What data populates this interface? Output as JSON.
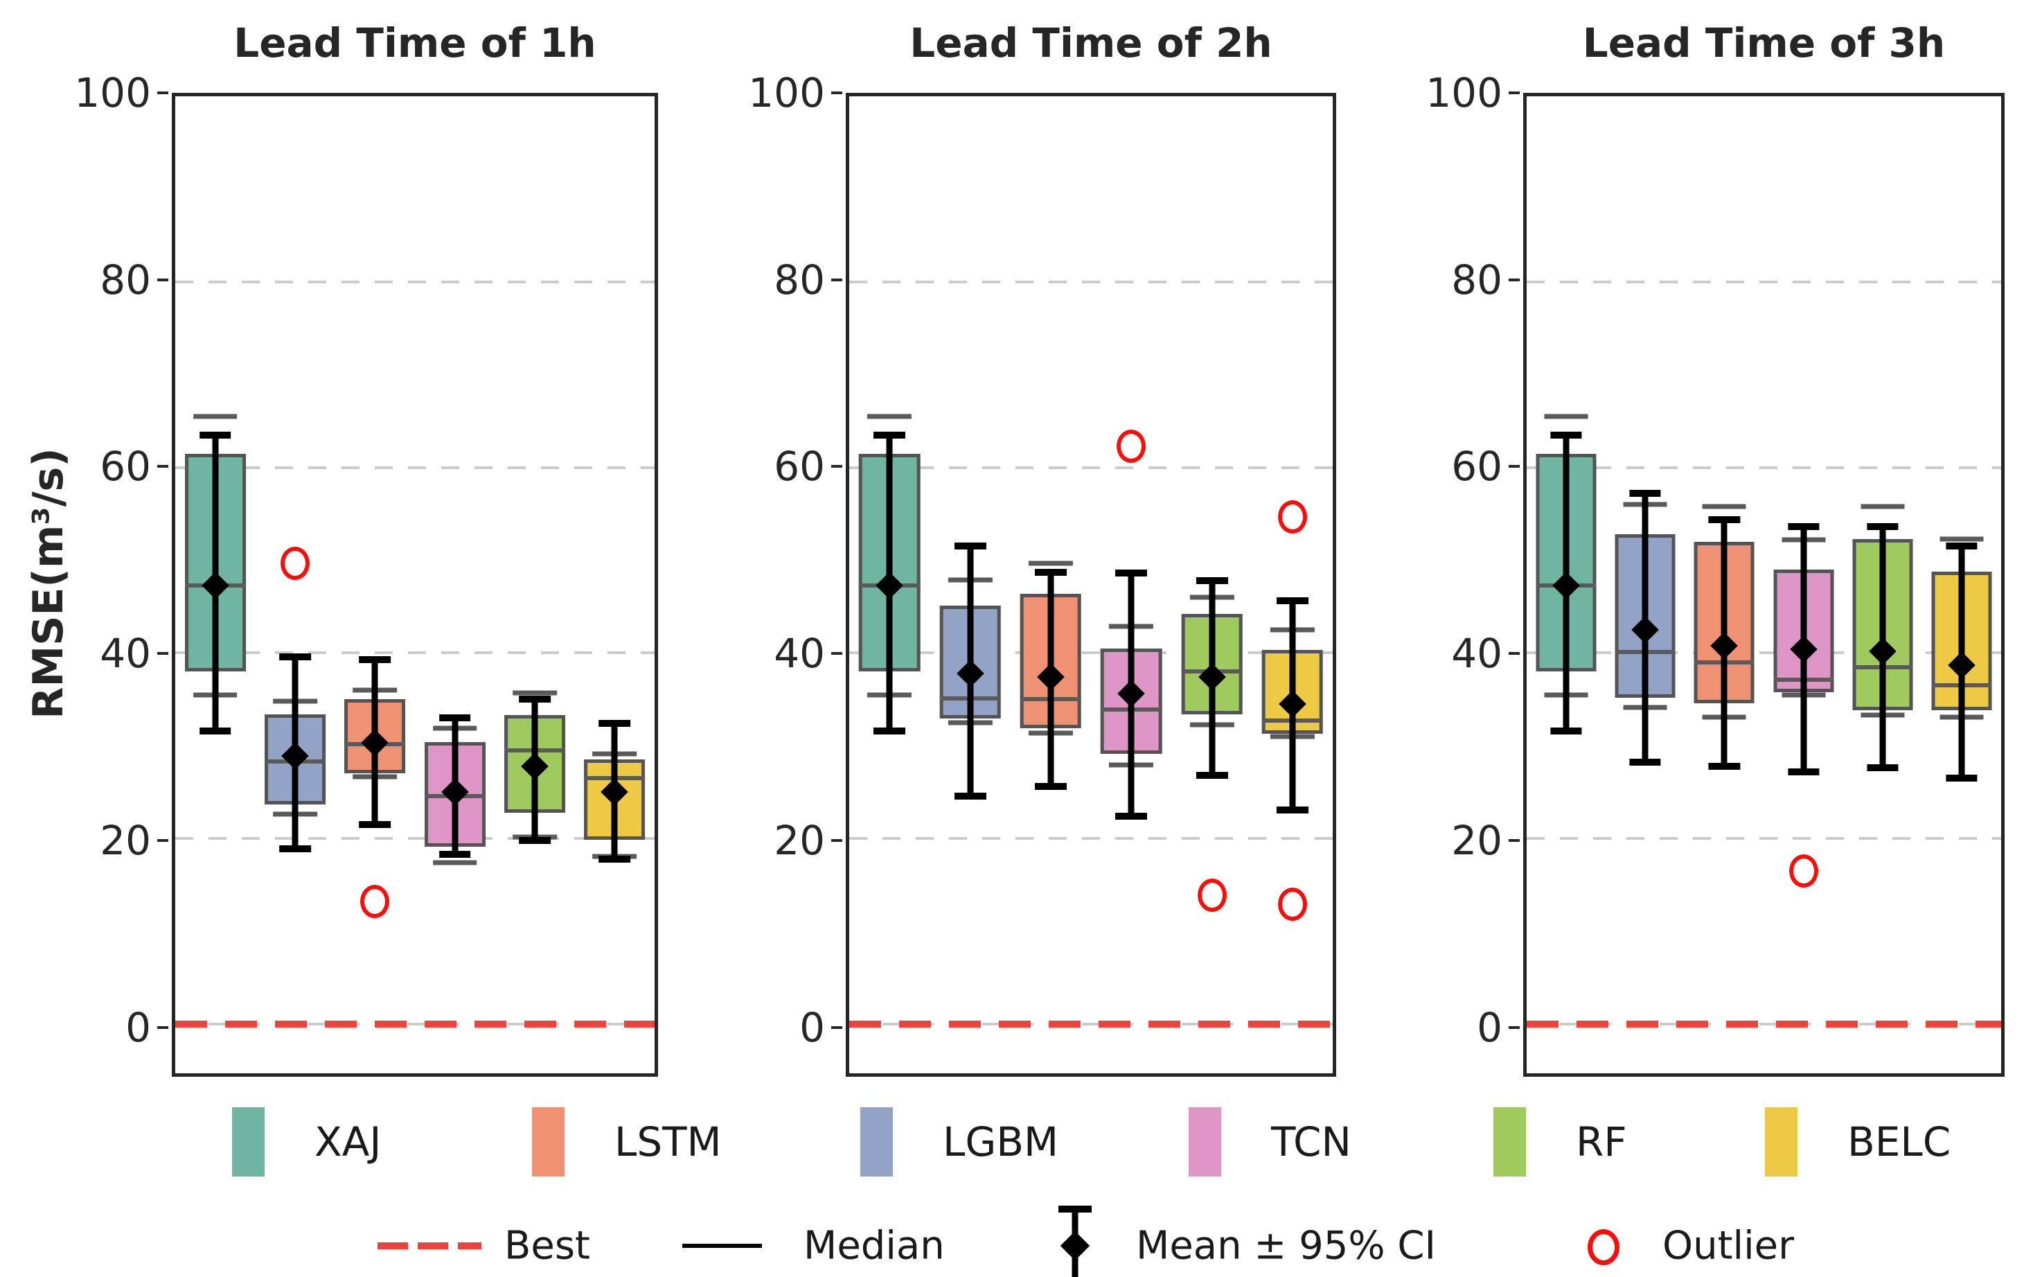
{
  "ylabel": "RMSE(m³/s)",
  "yticks": [
    0,
    20,
    40,
    60,
    80,
    100
  ],
  "gridline_values": [
    20,
    40,
    60,
    80
  ],
  "models": [
    {
      "label": "XAJ",
      "color": "#70b5a1"
    },
    {
      "label": "LGBM",
      "color": "#93a2c7"
    },
    {
      "label": "LSTM",
      "color": "#ef9273"
    },
    {
      "label": "TCN",
      "color": "#dd96c5"
    },
    {
      "label": "RF",
      "color": "#9eca5e"
    },
    {
      "label": "BELC",
      "color": "#edc944"
    }
  ],
  "legend_order": [
    "XAJ",
    "LSTM",
    "LGBM",
    "TCN",
    "RF",
    "BELC"
  ],
  "legend_markers": {
    "best": "Best",
    "median": "Median",
    "mean_ci": "Mean ± 95% CI",
    "outlier": "Outlier"
  },
  "status_colors": {
    "best_line_red": "#f0413c",
    "outlier_red": "#f80f0c",
    "box_edge_gray": "#545454",
    "gridline_gray": "#cbcbcb",
    "mean_ci_black": "#000000"
  },
  "chart_data": {
    "type": "box",
    "ylabel": "RMSE(m³/s)",
    "ylim": [
      -5.3,
      100
    ],
    "grid": "dashed horizontal at 20,40,60,80",
    "best_reference_line_y": 0,
    "legend_position": "below, two rows",
    "panels": [
      {
        "title": "Lead Time of 1h",
        "boxes": [
          {
            "model": "XAJ",
            "whisker_low": 35.5,
            "q1": 38.0,
            "median": 47.3,
            "q3": 61.5,
            "whisker_high": 65.5,
            "mean": 47.3,
            "ci_low": 31.6,
            "ci_high": 63.5,
            "outliers": []
          },
          {
            "model": "LGBM",
            "whisker_low": 22.6,
            "q1": 23.7,
            "median": 28.3,
            "q3": 33.4,
            "whisker_high": 34.8,
            "mean": 28.9,
            "ci_low": 18.9,
            "ci_high": 39.6,
            "outliers": [
              49.7
            ]
          },
          {
            "model": "LSTM",
            "whisker_low": 26.7,
            "q1": 27.0,
            "median": 30.2,
            "q3": 35.0,
            "whisker_high": 36.0,
            "mean": 30.3,
            "ci_low": 21.5,
            "ci_high": 39.3,
            "outliers": [
              13.2
            ]
          },
          {
            "model": "TCN",
            "whisker_low": 17.4,
            "q1": 19.1,
            "median": 24.6,
            "q3": 30.4,
            "whisker_high": 31.9,
            "mean": 25.0,
            "ci_low": 18.3,
            "ci_high": 33.0,
            "outliers": []
          },
          {
            "model": "RF",
            "whisker_low": 20.2,
            "q1": 22.8,
            "median": 29.5,
            "q3": 33.3,
            "whisker_high": 35.7,
            "mean": 27.8,
            "ci_low": 19.8,
            "ci_high": 35.0,
            "outliers": []
          },
          {
            "model": "BELC",
            "whisker_low": 18.1,
            "q1": 19.9,
            "median": 26.5,
            "q3": 28.5,
            "whisker_high": 29.1,
            "mean": 25.0,
            "ci_low": 17.8,
            "ci_high": 32.4,
            "outliers": []
          }
        ]
      },
      {
        "title": "Lead Time of 2h",
        "boxes": [
          {
            "model": "XAJ",
            "whisker_low": 35.5,
            "q1": 38.0,
            "median": 47.3,
            "q3": 61.5,
            "whisker_high": 65.5,
            "mean": 47.3,
            "ci_low": 31.6,
            "ci_high": 63.5,
            "outliers": []
          },
          {
            "model": "LGBM",
            "whisker_low": 32.5,
            "q1": 32.9,
            "median": 35.1,
            "q3": 45.1,
            "whisker_high": 47.9,
            "mean": 37.8,
            "ci_low": 24.6,
            "ci_high": 51.5,
            "outliers": []
          },
          {
            "model": "LSTM",
            "whisker_low": 31.4,
            "q1": 31.9,
            "median": 35.0,
            "q3": 46.4,
            "whisker_high": 49.7,
            "mean": 37.4,
            "ci_low": 25.6,
            "ci_high": 48.7,
            "outliers": []
          },
          {
            "model": "TCN",
            "whisker_low": 27.9,
            "q1": 29.1,
            "median": 33.9,
            "q3": 40.5,
            "whisker_high": 42.9,
            "mean": 35.6,
            "ci_low": 22.4,
            "ci_high": 48.6,
            "outliers": [
              62.3
            ]
          },
          {
            "model": "RF",
            "whisker_low": 32.3,
            "q1": 33.4,
            "median": 38.0,
            "q3": 44.2,
            "whisker_high": 46.0,
            "mean": 37.4,
            "ci_low": 26.8,
            "ci_high": 47.8,
            "outliers": [
              13.9
            ]
          },
          {
            "model": "BELC",
            "whisker_low": 31.0,
            "q1": 31.3,
            "median": 32.7,
            "q3": 40.3,
            "whisker_high": 42.5,
            "mean": 34.5,
            "ci_low": 23.1,
            "ci_high": 45.6,
            "outliers": [
              54.7,
              12.9
            ]
          }
        ]
      },
      {
        "title": "Lead Time of 3h",
        "boxes": [
          {
            "model": "XAJ",
            "whisker_low": 35.5,
            "q1": 38.0,
            "median": 47.3,
            "q3": 61.5,
            "whisker_high": 65.5,
            "mean": 47.3,
            "ci_low": 31.6,
            "ci_high": 63.5,
            "outliers": []
          },
          {
            "model": "LGBM",
            "whisker_low": 34.1,
            "q1": 35.2,
            "median": 40.1,
            "q3": 52.8,
            "whisker_high": 56.0,
            "mean": 42.5,
            "ci_low": 28.2,
            "ci_high": 57.2,
            "outliers": []
          },
          {
            "model": "LSTM",
            "whisker_low": 33.1,
            "q1": 34.6,
            "median": 39.0,
            "q3": 52.0,
            "whisker_high": 55.8,
            "mean": 40.8,
            "ci_low": 27.8,
            "ci_high": 54.4,
            "outliers": []
          },
          {
            "model": "TCN",
            "whisker_low": 35.5,
            "q1": 35.8,
            "median": 37.1,
            "q3": 49.0,
            "whisker_high": 52.2,
            "mean": 40.4,
            "ci_low": 27.2,
            "ci_high": 53.6,
            "outliers": [
              16.5
            ]
          },
          {
            "model": "RF",
            "whisker_low": 33.3,
            "q1": 33.8,
            "median": 38.5,
            "q3": 52.3,
            "whisker_high": 55.8,
            "mean": 40.2,
            "ci_low": 27.6,
            "ci_high": 53.6,
            "outliers": []
          },
          {
            "model": "BELC",
            "whisker_low": 33.1,
            "q1": 33.8,
            "median": 36.5,
            "q3": 48.8,
            "whisker_high": 52.3,
            "mean": 38.7,
            "ci_low": 26.5,
            "ci_high": 51.5,
            "outliers": []
          }
        ]
      }
    ]
  }
}
